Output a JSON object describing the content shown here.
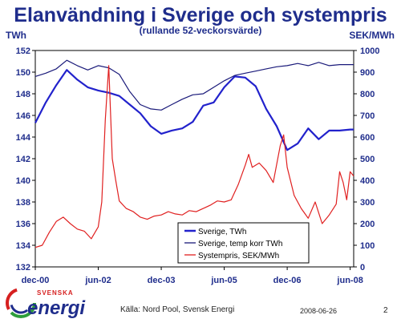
{
  "header": {
    "title": "Elanvändning i Sverige och systempris",
    "subtitle": "(rullande 52-veckorsvärde)",
    "unit_left": "TWh",
    "unit_right": "SEK/MWh"
  },
  "footer": {
    "source": "Källa: Nord Pool, Svensk Energi",
    "date": "2008-06-26",
    "page": "2"
  },
  "logo": {
    "top_text": "SVENSKA",
    "bottom_text": "energi"
  },
  "colors": {
    "title": "#1f2d8c",
    "sverige_twh": "#2222cc",
    "temp_korr": "#1a1a7a",
    "systempris": "#e02020",
    "logo_green": "#2e9e3c",
    "logo_red": "#d62020"
  },
  "chart_data": {
    "type": "line",
    "x_ticks": [
      "dec-00",
      "jun-02",
      "dec-03",
      "jun-05",
      "dec-06",
      "jun-08"
    ],
    "x_tick_index": [
      0,
      18,
      36,
      54,
      72,
      90
    ],
    "y_left": {
      "label": "TWh",
      "ylim": [
        132,
        152
      ],
      "ticks": [
        "132",
        "134",
        "136",
        "138",
        "140",
        "142",
        "144",
        "146",
        "148",
        "150",
        "152"
      ]
    },
    "y_right": {
      "label": "SEK/MWh",
      "ylim": [
        0,
        1000
      ],
      "ticks": [
        "0",
        "100",
        "200",
        "300",
        "400",
        "500",
        "600",
        "700",
        "800",
        "900",
        "1000"
      ]
    },
    "legend_position": "bottom-center",
    "series": [
      {
        "name": "Sverige, TWh",
        "axis": "left",
        "x": [
          0,
          3,
          6,
          9,
          12,
          15,
          18,
          21,
          24,
          27,
          30,
          33,
          36,
          39,
          42,
          45,
          48,
          51,
          54,
          57,
          60,
          63,
          66,
          69,
          72,
          75,
          78,
          81,
          84,
          87,
          90,
          91
        ],
        "values": [
          145.3,
          147.2,
          148.8,
          150.2,
          149.3,
          148.6,
          148.3,
          148.1,
          147.8,
          147.0,
          146.2,
          145.0,
          144.3,
          144.6,
          144.8,
          145.4,
          146.9,
          147.2,
          148.6,
          149.6,
          149.5,
          148.7,
          146.6,
          145.0,
          142.8,
          143.4,
          144.8,
          143.8,
          144.6,
          144.6,
          144.7,
          144.7
        ]
      },
      {
        "name": "Sverige, temp korr TWh",
        "axis": "left",
        "x": [
          0,
          3,
          6,
          9,
          12,
          15,
          18,
          21,
          24,
          27,
          30,
          33,
          36,
          39,
          42,
          45,
          48,
          51,
          54,
          57,
          60,
          63,
          66,
          69,
          72,
          75,
          78,
          81,
          84,
          87,
          90,
          91
        ],
        "values": [
          149.6,
          149.9,
          150.3,
          151.1,
          150.6,
          150.2,
          150.6,
          150.4,
          149.8,
          148.2,
          147.0,
          146.6,
          146.5,
          147.0,
          147.5,
          147.9,
          148.0,
          148.6,
          149.2,
          149.7,
          149.9,
          150.1,
          150.3,
          150.5,
          150.6,
          150.8,
          150.6,
          150.9,
          150.6,
          150.7,
          150.7,
          150.7
        ]
      },
      {
        "name": "Systempris, SEK/MWh",
        "axis": "right",
        "x": [
          0,
          2,
          4,
          6,
          8,
          10,
          12,
          14,
          16,
          18,
          19,
          20,
          21,
          22,
          23,
          24,
          26,
          28,
          30,
          32,
          34,
          36,
          38,
          40,
          42,
          44,
          46,
          48,
          50,
          52,
          54,
          56,
          58,
          60,
          61,
          62,
          64,
          66,
          68,
          70,
          71,
          72,
          74,
          76,
          78,
          80,
          82,
          84,
          86,
          87,
          88,
          89,
          90,
          91
        ],
        "values": [
          90,
          100,
          160,
          210,
          230,
          200,
          175,
          165,
          130,
          185,
          300,
          680,
          930,
          500,
          400,
          305,
          270,
          255,
          230,
          220,
          235,
          240,
          255,
          245,
          240,
          260,
          255,
          270,
          285,
          305,
          300,
          310,
          380,
          470,
          520,
          460,
          480,
          445,
          390,
          560,
          610,
          460,
          330,
          270,
          225,
          300,
          200,
          240,
          290,
          440,
          390,
          310,
          440,
          420
        ]
      }
    ]
  }
}
